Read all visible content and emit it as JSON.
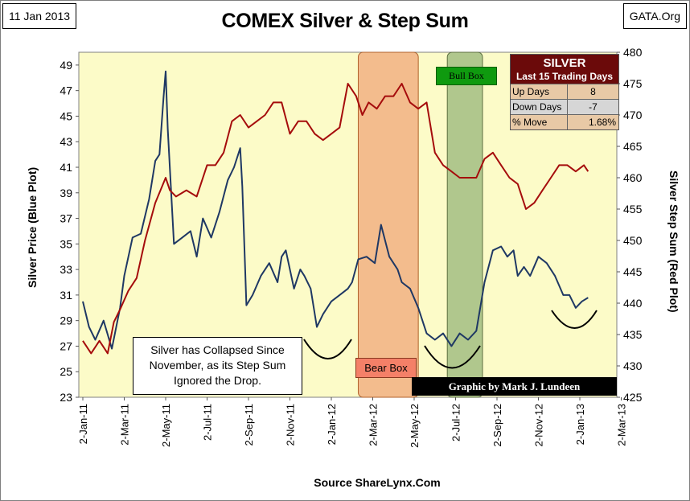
{
  "header": {
    "date": "11 Jan 2013",
    "site": "GATA.Org",
    "title": "COMEX Silver & Step Sum",
    "source": "Source ShareLynx.Com"
  },
  "stats_table": {
    "title": "SILVER",
    "subtitle": "Last 15 Trading Days",
    "rows": [
      {
        "label": "Up Days",
        "value": "8"
      },
      {
        "label": "Down Days",
        "value": "-7"
      },
      {
        "label": "% Move",
        "value": "1.68%"
      }
    ]
  },
  "annotations": {
    "note": "Silver has Collapsed Since November, as its Step Sum Ignored the Drop.",
    "bull_box": "Bull Box",
    "bear_box": "Bear Box",
    "credit": "Graphic by Mark J. Lundeen"
  },
  "colors": {
    "plot_bg": "#fcfbc8",
    "silver": "#1f3864",
    "step_sum": "#a50c0c",
    "bear_fill": "#f0a77a",
    "bull_fill": "#97b57a"
  },
  "chart_data": {
    "type": "line",
    "title": "COMEX Silver & Step Sum",
    "ylabel": "Silver Price (Blue Plot)",
    "y2label": "Silver Step Sum (Red Plot)",
    "ylim": [
      23,
      50
    ],
    "y2lim": [
      425,
      480
    ],
    "yticks": [
      23,
      25,
      27,
      29,
      31,
      33,
      35,
      37,
      39,
      41,
      43,
      45,
      47,
      49
    ],
    "y2ticks": [
      425,
      430,
      435,
      440,
      445,
      450,
      455,
      460,
      465,
      470,
      475,
      480
    ],
    "xticks": [
      "2-Jan-11",
      "2-Mar-11",
      "2-May-11",
      "2-Jul-11",
      "2-Sep-11",
      "2-Nov-11",
      "2-Jan-12",
      "2-Mar-12",
      "2-May-12",
      "2-Jul-12",
      "2-Sep-12",
      "2-Nov-12",
      "2-Jan-13",
      "2-Mar-13"
    ],
    "x_unit": "months since 2-Jan-11",
    "series": [
      {
        "name": "Silver Price (Blue Plot)",
        "axis": "left",
        "x": [
          0,
          0.3,
          0.6,
          1.0,
          1.4,
          1.8,
          2.0,
          2.4,
          2.8,
          3.2,
          3.5,
          3.7,
          3.9,
          4.0,
          4.1,
          4.4,
          4.8,
          5.2,
          5.5,
          5.8,
          6.2,
          6.6,
          7.0,
          7.3,
          7.6,
          7.7,
          7.9,
          8.2,
          8.6,
          9.0,
          9.4,
          9.6,
          9.8,
          10.2,
          10.5,
          10.7,
          11.0,
          11.3,
          11.6,
          12.0,
          12.4,
          12.8,
          13.0,
          13.3,
          13.7,
          14.1,
          14.4,
          14.8,
          15.2,
          15.4,
          15.8,
          16.2,
          16.6,
          17.0,
          17.4,
          17.8,
          18.2,
          18.6,
          19.0,
          19.4,
          19.8,
          20.2,
          20.5,
          20.8,
          21.0,
          21.3,
          21.6,
          22.0,
          22.4,
          22.8,
          23.2,
          23.5,
          23.8,
          24.1,
          24.4
        ],
        "values": [
          30.5,
          28.5,
          27.5,
          29.0,
          26.8,
          30.0,
          32.5,
          35.5,
          35.8,
          38.5,
          41.5,
          42.0,
          46.5,
          48.5,
          44.0,
          35.0,
          35.5,
          36.0,
          34.0,
          37.0,
          35.5,
          37.5,
          40.0,
          41.0,
          42.5,
          39.5,
          30.2,
          31.0,
          32.5,
          33.5,
          32.0,
          34.0,
          34.5,
          31.5,
          33.0,
          32.5,
          31.5,
          28.5,
          29.5,
          30.5,
          31.0,
          31.5,
          32.0,
          33.8,
          34.0,
          33.5,
          36.5,
          34.0,
          33.0,
          32.0,
          31.5,
          30.0,
          28.0,
          27.5,
          28.0,
          27.0,
          28.0,
          27.5,
          28.2,
          32.0,
          34.5,
          34.8,
          34.0,
          34.5,
          32.5,
          33.2,
          32.5,
          34.0,
          33.5,
          32.5,
          31.0,
          31.0,
          30.0,
          30.5,
          30.8
        ]
      },
      {
        "name": "Silver Step Sum (Red Plot)",
        "axis": "right",
        "x": [
          0,
          0.4,
          0.8,
          1.2,
          1.5,
          1.8,
          2.2,
          2.6,
          3.0,
          3.5,
          4.0,
          4.2,
          4.5,
          5.0,
          5.5,
          6.0,
          6.4,
          6.8,
          7.2,
          7.6,
          8.0,
          8.4,
          8.8,
          9.2,
          9.6,
          10.0,
          10.4,
          10.8,
          11.2,
          11.6,
          12.0,
          12.4,
          12.8,
          13.2,
          13.5,
          13.8,
          14.2,
          14.6,
          15.0,
          15.4,
          15.8,
          16.2,
          16.6,
          17.0,
          17.4,
          17.8,
          18.2,
          18.6,
          19.0,
          19.4,
          19.8,
          20.2,
          20.6,
          21.0,
          21.4,
          21.8,
          22.2,
          22.6,
          23.0,
          23.4,
          23.8,
          24.2,
          24.4
        ],
        "values": [
          434,
          432,
          434,
          432,
          437,
          439,
          442,
          444,
          450,
          456,
          460,
          458,
          457,
          458,
          457,
          462,
          462,
          464,
          469,
          470,
          468,
          469,
          470,
          472,
          472,
          467,
          469,
          469,
          467,
          466,
          467,
          468,
          475,
          473,
          470,
          472,
          471,
          473,
          473,
          475,
          472,
          471,
          472,
          464,
          462,
          461,
          460,
          460,
          460,
          463,
          464,
          462,
          460,
          459,
          455,
          456,
          458,
          460,
          462,
          462,
          461,
          462,
          461
        ]
      }
    ],
    "shaded_regions": [
      {
        "label": "Bear Box",
        "x_start": 13.3,
        "x_end": 16.2
      },
      {
        "label": "Bull Box",
        "x_start": 17.6,
        "x_end": 19.3
      }
    ]
  }
}
